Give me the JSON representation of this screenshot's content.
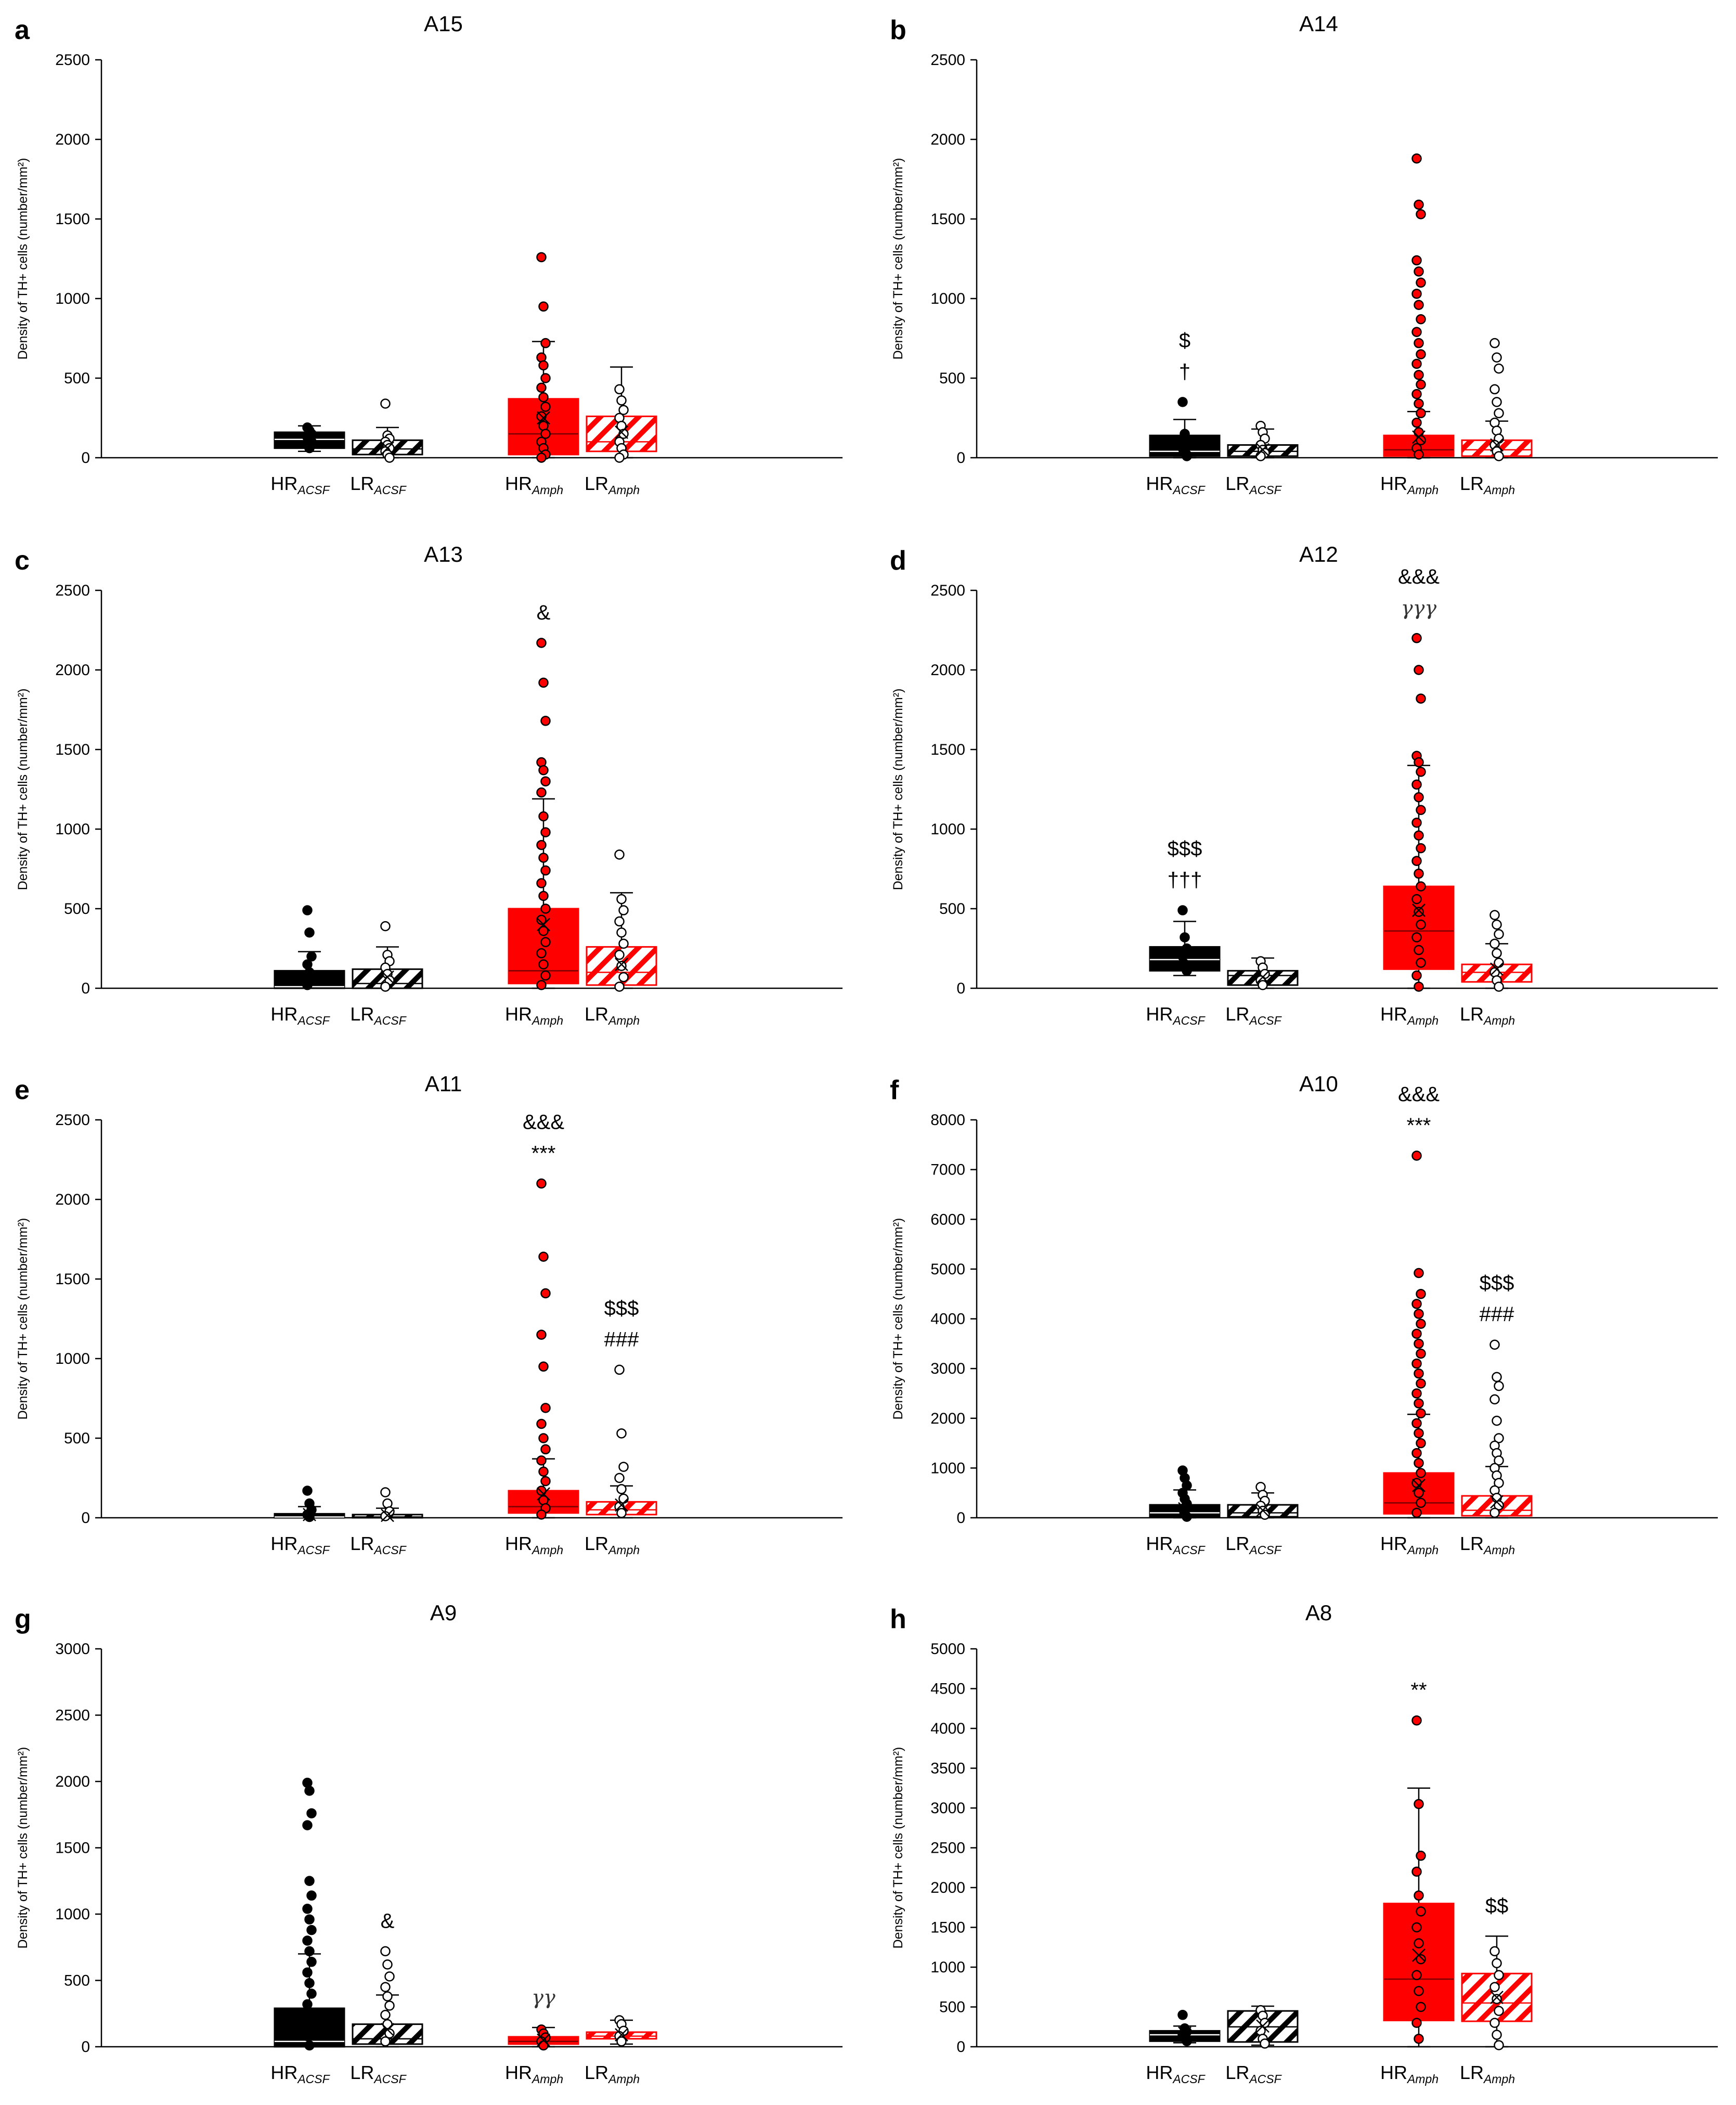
{
  "colors": {
    "black": "#000000",
    "red": "#ff0000",
    "white": "#ffffff",
    "axis": "#000000"
  },
  "y_axis_label": "Density of TH+ cells (number/mm²)",
  "group_labels": [
    {
      "main": "HR",
      "sub": "ACSF"
    },
    {
      "main": "LR",
      "sub": "ACSF"
    },
    {
      "main": "HR",
      "sub": "Amph"
    },
    {
      "main": "LR",
      "sub": "Amph"
    }
  ],
  "chart_data": [
    {
      "panel": "a",
      "title": "A15",
      "type": "box",
      "ylim": [
        0,
        2500
      ],
      "yticks": [
        0,
        500,
        1000,
        1500,
        2000,
        2500
      ],
      "boxes": [
        {
          "q1": 60,
          "median": 115,
          "q3": 160,
          "mean": 120,
          "whisker_low": 40,
          "whisker_high": 200,
          "points": [
            190,
            170,
            150,
            130,
            120,
            100,
            80,
            60
          ]
        },
        {
          "q1": 20,
          "median": 55,
          "q3": 110,
          "mean": 60,
          "whisker_low": 0,
          "whisker_high": 190,
          "points": [
            340,
            140,
            120,
            100,
            80,
            60,
            40,
            20,
            0
          ]
        },
        {
          "q1": 20,
          "median": 150,
          "q3": 370,
          "mean": 250,
          "whisker_low": 0,
          "whisker_high": 730,
          "points": [
            1260,
            950,
            720,
            630,
            580,
            500,
            440,
            380,
            320,
            260,
            200,
            150,
            100,
            60,
            20,
            0
          ]
        },
        {
          "q1": 40,
          "median": 100,
          "q3": 260,
          "mean": 160,
          "whisker_low": 0,
          "whisker_high": 570,
          "points": [
            430,
            360,
            300,
            250,
            200,
            150,
            100,
            60,
            20,
            0
          ]
        }
      ],
      "annotations": []
    },
    {
      "panel": "b",
      "title": "A14",
      "type": "box",
      "ylim": [
        0,
        2500
      ],
      "yticks": [
        0,
        500,
        1000,
        1500,
        2000,
        2500
      ],
      "boxes": [
        {
          "q1": 10,
          "median": 40,
          "q3": 140,
          "mean": 70,
          "whisker_low": 0,
          "whisker_high": 240,
          "points": [
            350,
            150,
            100,
            60,
            30,
            10
          ]
        },
        {
          "q1": 10,
          "median": 40,
          "q3": 80,
          "mean": 50,
          "whisker_low": 0,
          "whisker_high": 180,
          "points": [
            200,
            160,
            120,
            80,
            50,
            30,
            10
          ]
        },
        {
          "q1": 10,
          "median": 50,
          "q3": 140,
          "mean": 130,
          "whisker_low": 0,
          "whisker_high": 290,
          "points": [
            1880,
            1590,
            1530,
            1240,
            1170,
            1100,
            1030,
            960,
            870,
            790,
            720,
            650,
            590,
            520,
            460,
            400,
            340,
            280,
            220,
            160,
            110,
            60,
            20
          ]
        },
        {
          "q1": 10,
          "median": 50,
          "q3": 110,
          "mean": 80,
          "whisker_low": 0,
          "whisker_high": 230,
          "points": [
            720,
            630,
            560,
            430,
            350,
            280,
            220,
            170,
            120,
            80,
            40,
            10
          ]
        }
      ],
      "annotations": [
        {
          "group": 0,
          "lines": [
            "$",
            "†"
          ]
        }
      ]
    },
    {
      "panel": "c",
      "title": "A13",
      "type": "box",
      "ylim": [
        0,
        2500
      ],
      "yticks": [
        0,
        500,
        1000,
        1500,
        2000,
        2500
      ],
      "boxes": [
        {
          "q1": 0,
          "median": 10,
          "q3": 110,
          "mean": 60,
          "whisker_low": 0,
          "whisker_high": 230,
          "points": [
            490,
            350,
            200,
            150,
            100,
            60,
            20
          ]
        },
        {
          "q1": 0,
          "median": 30,
          "q3": 120,
          "mean": 70,
          "whisker_low": 0,
          "whisker_high": 260,
          "points": [
            390,
            210,
            170,
            130,
            90,
            50,
            10
          ]
        },
        {
          "q1": 30,
          "median": 110,
          "q3": 500,
          "mean": 400,
          "whisker_low": 0,
          "whisker_high": 1190,
          "points": [
            2170,
            1920,
            1680,
            1420,
            1370,
            1300,
            1230,
            1080,
            980,
            900,
            820,
            740,
            660,
            580,
            500,
            430,
            360,
            290,
            220,
            150,
            80,
            20
          ]
        },
        {
          "q1": 20,
          "median": 100,
          "q3": 260,
          "mean": 150,
          "whisker_low": 0,
          "whisker_high": 600,
          "points": [
            840,
            560,
            490,
            420,
            350,
            280,
            210,
            140,
            70,
            10
          ]
        }
      ],
      "annotations": [
        {
          "group": 2,
          "lines": [
            "&"
          ]
        }
      ]
    },
    {
      "panel": "d",
      "title": "A12",
      "type": "box",
      "ylim": [
        0,
        2500
      ],
      "yticks": [
        0,
        500,
        1000,
        1500,
        2000,
        2500
      ],
      "boxes": [
        {
          "q1": 110,
          "median": 180,
          "q3": 260,
          "mean": 190,
          "whisker_low": 80,
          "whisker_high": 420,
          "points": [
            490,
            320,
            250,
            200,
            150,
            110
          ]
        },
        {
          "q1": 20,
          "median": 80,
          "q3": 110,
          "mean": 70,
          "whisker_low": 0,
          "whisker_high": 190,
          "points": [
            170,
            130,
            90,
            50,
            20
          ]
        },
        {
          "q1": 120,
          "median": 360,
          "q3": 640,
          "mean": 490,
          "whisker_low": 0,
          "whisker_high": 1400,
          "points": [
            2200,
            2000,
            1820,
            1460,
            1420,
            1360,
            1280,
            1200,
            1120,
            1040,
            960,
            880,
            800,
            720,
            640,
            560,
            480,
            400,
            320,
            240,
            160,
            80,
            10
          ]
        },
        {
          "q1": 40,
          "median": 100,
          "q3": 150,
          "mean": 120,
          "whisker_low": 0,
          "whisker_high": 280,
          "points": [
            460,
            400,
            340,
            280,
            220,
            160,
            100,
            50,
            10
          ]
        }
      ],
      "annotations": [
        {
          "group": 0,
          "lines": [
            "$$$",
            "†††"
          ]
        },
        {
          "group": 2,
          "lines": [
            "&&&",
            "γγγ"
          ]
        }
      ]
    },
    {
      "panel": "e",
      "title": "A11",
      "type": "box",
      "ylim": [
        0,
        2500
      ],
      "yticks": [
        0,
        500,
        1000,
        1500,
        2000,
        2500
      ],
      "boxes": [
        {
          "q1": 0,
          "median": 5,
          "q3": 25,
          "mean": 20,
          "whisker_low": 0,
          "whisker_high": 70,
          "points": [
            170,
            90,
            50,
            20,
            5
          ]
        },
        {
          "q1": 0,
          "median": 5,
          "q3": 20,
          "mean": 15,
          "whisker_low": 0,
          "whisker_high": 60,
          "points": [
            160,
            90,
            40,
            10
          ]
        },
        {
          "q1": 30,
          "median": 70,
          "q3": 170,
          "mean": 150,
          "whisker_low": 0,
          "whisker_high": 370,
          "points": [
            2100,
            1640,
            1410,
            1150,
            950,
            690,
            590,
            500,
            430,
            360,
            290,
            230,
            170,
            110,
            60,
            20
          ]
        },
        {
          "q1": 20,
          "median": 50,
          "q3": 100,
          "mean": 80,
          "whisker_low": 0,
          "whisker_high": 200,
          "points": [
            930,
            530,
            320,
            250,
            180,
            120,
            70,
            30
          ]
        }
      ],
      "annotations": [
        {
          "group": 2,
          "lines": [
            "&&&",
            "***"
          ]
        },
        {
          "group": 3,
          "lines": [
            "$$$",
            "###"
          ]
        }
      ]
    },
    {
      "panel": "f",
      "title": "A10",
      "type": "box",
      "ylim": [
        0,
        8000
      ],
      "yticks": [
        0,
        1000,
        2000,
        3000,
        4000,
        5000,
        6000,
        7000,
        8000
      ],
      "boxes": [
        {
          "q1": 20,
          "median": 100,
          "q3": 260,
          "mean": 180,
          "whisker_low": 0,
          "whisker_high": 560,
          "points": [
            950,
            800,
            650,
            500,
            380,
            280,
            180,
            90,
            20
          ]
        },
        {
          "q1": 20,
          "median": 100,
          "q3": 260,
          "mean": 150,
          "whisker_low": 0,
          "whisker_high": 500,
          "points": [
            620,
            460,
            340,
            240,
            140,
            60
          ]
        },
        {
          "q1": 80,
          "median": 300,
          "q3": 900,
          "mean": 650,
          "whisker_low": 0,
          "whisker_high": 2080,
          "points": [
            7280,
            4920,
            4500,
            4300,
            4100,
            3900,
            3700,
            3500,
            3300,
            3100,
            2900,
            2700,
            2500,
            2300,
            2100,
            1900,
            1700,
            1500,
            1300,
            1100,
            900,
            700,
            500,
            300,
            100
          ]
        },
        {
          "q1": 40,
          "median": 150,
          "q3": 440,
          "mean": 320,
          "whisker_low": 0,
          "whisker_high": 1030,
          "points": [
            3480,
            2830,
            2650,
            2380,
            1950,
            1600,
            1450,
            1300,
            1150,
            1000,
            850,
            700,
            550,
            400,
            250,
            100
          ]
        }
      ],
      "annotations": [
        {
          "group": 2,
          "lines": [
            "&&&",
            "***"
          ]
        },
        {
          "group": 3,
          "lines": [
            "$$$",
            "###"
          ]
        }
      ]
    },
    {
      "panel": "g",
      "title": "A9",
      "type": "box",
      "ylim": [
        0,
        3000
      ],
      "yticks": [
        0,
        500,
        1000,
        1500,
        2000,
        2500,
        3000
      ],
      "boxes": [
        {
          "q1": 0,
          "median": 40,
          "q3": 290,
          "mean": 170,
          "whisker_low": 0,
          "whisker_high": 700,
          "points": [
            1990,
            1930,
            1760,
            1670,
            1250,
            1140,
            1040,
            960,
            880,
            800,
            720,
            640,
            560,
            480,
            400,
            320,
            240,
            160,
            80,
            10
          ]
        },
        {
          "q1": 20,
          "median": 60,
          "q3": 170,
          "mean": 130,
          "whisker_low": 0,
          "whisker_high": 390,
          "points": [
            720,
            620,
            530,
            450,
            380,
            310,
            240,
            170,
            100,
            40
          ]
        },
        {
          "q1": 20,
          "median": 40,
          "q3": 75,
          "mean": 50,
          "whisker_low": 0,
          "whisker_high": 145,
          "points": [
            130,
            100,
            70,
            40,
            10
          ]
        },
        {
          "q1": 60,
          "median": 80,
          "q3": 110,
          "mean": 90,
          "whisker_low": 20,
          "whisker_high": 200,
          "points": [
            200,
            170,
            120,
            80,
            40
          ]
        }
      ],
      "annotations": [
        {
          "group": 1,
          "lines": [
            "&"
          ]
        },
        {
          "group": 2,
          "lines": [
            "γγ"
          ]
        }
      ]
    },
    {
      "panel": "h",
      "title": "A8",
      "type": "box",
      "ylim": [
        0,
        5000
      ],
      "yticks": [
        0,
        500,
        1000,
        1500,
        2000,
        2500,
        3000,
        3500,
        4000,
        4500,
        5000
      ],
      "boxes": [
        {
          "q1": 70,
          "median": 150,
          "q3": 200,
          "mean": 170,
          "whisker_low": 50,
          "whisker_high": 260,
          "points": [
            400,
            230,
            190,
            150,
            110,
            70
          ]
        },
        {
          "q1": 60,
          "median": 250,
          "q3": 450,
          "mean": 260,
          "whisker_low": 20,
          "whisker_high": 510,
          "points": [
            460,
            390,
            300,
            200,
            100,
            40
          ]
        },
        {
          "q1": 330,
          "median": 850,
          "q3": 1800,
          "mean": 1150,
          "whisker_low": 0,
          "whisker_high": 3250,
          "points": [
            4100,
            3050,
            2400,
            2200,
            1900,
            1700,
            1500,
            1300,
            1100,
            900,
            700,
            500,
            300,
            100
          ]
        },
        {
          "q1": 320,
          "median": 550,
          "q3": 920,
          "mean": 620,
          "whisker_low": 0,
          "whisker_high": 1390,
          "points": [
            1200,
            1050,
            900,
            750,
            600,
            450,
            300,
            150,
            20
          ]
        }
      ],
      "annotations": [
        {
          "group": 2,
          "lines": [
            "**"
          ]
        },
        {
          "group": 3,
          "lines": [
            "$$"
          ]
        }
      ]
    }
  ]
}
